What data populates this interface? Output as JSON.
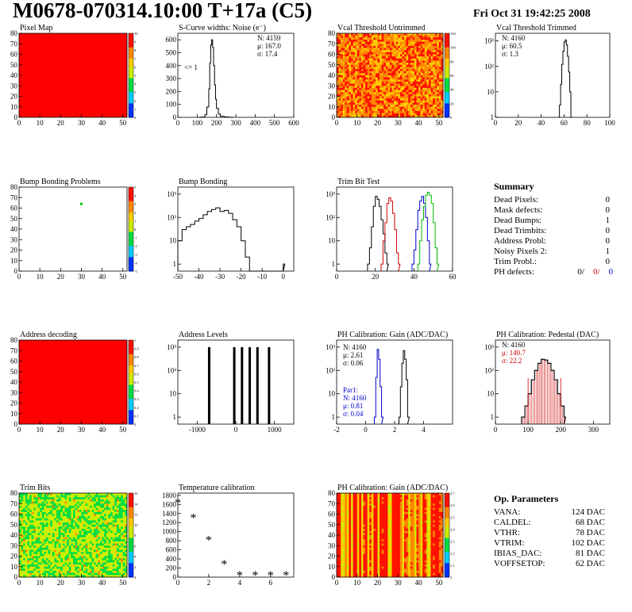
{
  "header": {
    "title": "M0678-070314.10:00 T+17a (C5)",
    "date": "Fri Oct 31 19:42:25 2008"
  },
  "colors": {
    "hist_line": "#000000",
    "red_series": "#cc0000",
    "green_series": "#00bb00",
    "blue_series": "#0000cc",
    "map_red": "#ff0000"
  },
  "chart_data": [
    {
      "id": "pixel-map",
      "type": "heatmap",
      "title": "Pixel Map",
      "xlim": [
        0,
        52
      ],
      "ylim": [
        0,
        80
      ],
      "xticks": [
        "0",
        "10",
        "20",
        "30",
        "40",
        "50"
      ],
      "yticks": [
        "0",
        "10",
        "20",
        "30",
        "40",
        "50",
        "60",
        "70",
        "80"
      ],
      "colorbar_ticks": [
        "10",
        "9",
        "8",
        "7",
        "6",
        "5",
        "4",
        "3",
        "2",
        "1",
        "0"
      ],
      "uniform_value": 10,
      "fill_color": "#ff0000"
    },
    {
      "id": "scurve-noise",
      "type": "line",
      "title": "S-Curve widths: Noise (e⁻)",
      "xlim": [
        0,
        600
      ],
      "ylim": [
        0,
        650
      ],
      "xticks": [
        "0",
        "100",
        "200",
        "300",
        "400",
        "500",
        "600"
      ],
      "yticks": [
        "0",
        "100",
        "200",
        "300",
        "400",
        "500",
        "600"
      ],
      "x": [
        100,
        120,
        140,
        150,
        160,
        165,
        170,
        175,
        180,
        185,
        190,
        195,
        200,
        210,
        220,
        240,
        260,
        280
      ],
      "y": [
        0,
        2,
        20,
        80,
        220,
        420,
        560,
        600,
        540,
        400,
        250,
        140,
        70,
        25,
        8,
        3,
        1,
        0
      ],
      "stats": [
        "N: 4159",
        "μ: 167.0",
        "σ: 17.4"
      ],
      "annotations": [
        "<= 1"
      ]
    },
    {
      "id": "vcal-untrimmed",
      "type": "heatmap",
      "title": "Vcal Threshold Untrimmed",
      "xlim": [
        0,
        52
      ],
      "ylim": [
        0,
        80
      ],
      "xticks": [
        "0",
        "10",
        "20",
        "30",
        "40",
        "50"
      ],
      "yticks": [
        "0",
        "10",
        "20",
        "30",
        "40",
        "50",
        "60",
        "70",
        "80"
      ],
      "colorbar_ticks": [
        "120",
        "100",
        "80",
        "60",
        "40",
        "20",
        "0"
      ]
    },
    {
      "id": "vcal-trimmed",
      "type": "line",
      "title": "Vcal Threshold Trimmed",
      "xlim": [
        0,
        100
      ],
      "ylog": true,
      "ylim": [
        1,
        2000
      ],
      "xticks": [
        "0",
        "20",
        "40",
        "60",
        "80",
        "100"
      ],
      "yticks": [
        "1",
        "10",
        "10²",
        "10³"
      ],
      "x": [
        55,
        56,
        57,
        58,
        59,
        60,
        61,
        62,
        63,
        64,
        65,
        66
      ],
      "y": [
        1,
        3,
        20,
        120,
        400,
        900,
        1100,
        700,
        250,
        60,
        10,
        1
      ],
      "stats": [
        "N: 4160",
        "μ: 60.5",
        "σ: 1.3"
      ]
    },
    {
      "id": "bump-bonding-problems",
      "type": "heatmap",
      "title": "Bump Bonding Problems",
      "xlim": [
        0,
        52
      ],
      "ylim": [
        0,
        80
      ],
      "xticks": [
        "0",
        "10",
        "20",
        "30",
        "40",
        "50"
      ],
      "yticks": [
        "0",
        "10",
        "20",
        "30",
        "40",
        "50",
        "60",
        "70",
        "80"
      ],
      "colorbar_ticks": [
        "5",
        "4",
        "3",
        "2",
        "1",
        "0",
        "-1",
        "-2",
        "-3",
        "-4",
        "-5"
      ],
      "points": [
        {
          "x": 30,
          "y": 64
        }
      ]
    },
    {
      "id": "bump-bonding",
      "type": "line",
      "title": "Bump Bonding",
      "xlim": [
        -50,
        5
      ],
      "ylog": true,
      "ylim": [
        0.5,
        2000
      ],
      "xticks": [
        "-50",
        "-40",
        "-30",
        "-20",
        "-10",
        "0"
      ],
      "yticks": [
        "1",
        "10",
        "10²",
        "10³"
      ],
      "x": [
        -50,
        -48,
        -46,
        -44,
        -42,
        -40,
        -38,
        -36,
        -34,
        -32,
        -30,
        -28,
        -26,
        -24,
        -22,
        -20,
        -18,
        -16,
        -1,
        0
      ],
      "y": [
        10,
        30,
        40,
        50,
        70,
        90,
        130,
        180,
        220,
        260,
        180,
        200,
        150,
        80,
        40,
        10,
        2,
        0.5,
        0.5,
        1
      ]
    },
    {
      "id": "trim-bit-test",
      "type": "line",
      "title": "Trim Bit Test",
      "xlim": [
        0,
        60
      ],
      "ylog": true,
      "ylim": [
        0.5,
        2000
      ],
      "xticks": [
        "0",
        "20",
        "40",
        "60"
      ],
      "yticks": [
        "1",
        "10",
        "10²",
        "10³"
      ],
      "series": [
        {
          "color": "#000000",
          "x": [
            16,
            17,
            18,
            19,
            20,
            21,
            22,
            23,
            24,
            25,
            26
          ],
          "y": [
            1,
            5,
            40,
            300,
            800,
            600,
            300,
            80,
            20,
            3,
            1
          ]
        },
        {
          "color": "#cc0000",
          "x": [
            23,
            24,
            25,
            26,
            27,
            28,
            29,
            30,
            31,
            32
          ],
          "y": [
            1,
            10,
            60,
            400,
            700,
            500,
            150,
            30,
            3,
            1
          ]
        },
        {
          "color": "#0000cc",
          "x": [
            39,
            40,
            41,
            42,
            43,
            44,
            45,
            46,
            47,
            48
          ],
          "y": [
            1,
            4,
            30,
            200,
            500,
            800,
            400,
            100,
            10,
            1
          ]
        },
        {
          "color": "#00bb00",
          "x": [
            42,
            43,
            44,
            45,
            46,
            47,
            48,
            49,
            50,
            51,
            52
          ],
          "y": [
            1,
            10,
            80,
            300,
            900,
            1200,
            900,
            400,
            60,
            5,
            1
          ]
        }
      ]
    },
    {
      "id": "address-decoding",
      "type": "heatmap",
      "title": "Address decoding",
      "xlim": [
        0,
        52
      ],
      "ylim": [
        0,
        80
      ],
      "xticks": [
        "0",
        "10",
        "20",
        "30",
        "40",
        "50"
      ],
      "yticks": [
        "0",
        "10",
        "20",
        "30",
        "40",
        "50",
        "60",
        "70",
        "80"
      ],
      "colorbar_ticks": [
        "1",
        "0.9",
        "0.8",
        "0.7",
        "0.6",
        "0.5",
        "0.4",
        "0.3",
        "0.2",
        "0.1",
        "0"
      ],
      "uniform_value": 1,
      "fill_color": "#ff0000"
    },
    {
      "id": "address-levels",
      "type": "bar",
      "title": "Address Levels",
      "xlim": [
        -1500,
        1500
      ],
      "ylog": true,
      "ylim": [
        0.5,
        2000
      ],
      "xticks": [
        "-1000",
        "0",
        "1000"
      ],
      "yticks": [
        "1",
        "10",
        "10²",
        "10³"
      ],
      "x": [
        -700,
        -50,
        150,
        350,
        550,
        850
      ],
      "y": [
        1000,
        1000,
        1000,
        1000,
        1000,
        1000
      ]
    },
    {
      "id": "ph-gain",
      "type": "line",
      "title": "PH Calibration: Gain (ADC/DAC)",
      "xlim": [
        -2,
        6
      ],
      "ylog": true,
      "ylim": [
        0.5,
        2000
      ],
      "xticks": [
        "-2",
        "0",
        "2",
        "4"
      ],
      "yticks": [
        "1",
        "10",
        "10²",
        "10³"
      ],
      "series": [
        {
          "color": "#000000",
          "x": [
            2.3,
            2.4,
            2.5,
            2.6,
            2.7,
            2.8,
            2.9
          ],
          "y": [
            1,
            20,
            200,
            700,
            300,
            40,
            1
          ]
        },
        {
          "color": "#0000cc",
          "x": [
            0.6,
            0.7,
            0.8,
            0.9,
            1.0,
            1.1
          ],
          "y": [
            1,
            50,
            800,
            300,
            20,
            1
          ]
        }
      ],
      "stats": [
        "N: 4160",
        "μ: 2.61",
        "σ: 0.06"
      ],
      "stats2": [
        "Par1:",
        "N: 4160",
        "μ: 0.81",
        "σ: 0.04"
      ]
    },
    {
      "id": "ph-pedestal",
      "type": "line",
      "title": "PH Calibration: Pedestal (DAC)",
      "xlim": [
        0,
        350
      ],
      "ylog": true,
      "ylim": [
        0.5,
        2000
      ],
      "xticks": [
        "0",
        "100",
        "200",
        "300"
      ],
      "yticks": [
        "1",
        "10",
        "10²",
        "10³"
      ],
      "x": [
        80,
        90,
        100,
        110,
        120,
        130,
        140,
        150,
        160,
        170,
        180,
        190,
        200,
        210
      ],
      "y": [
        1,
        3,
        10,
        40,
        100,
        200,
        300,
        280,
        200,
        100,
        40,
        10,
        3,
        1
      ],
      "stats": [
        "N: 4160",
        "μ: 140.7",
        "σ: 22.2"
      ]
    },
    {
      "id": "trim-bits",
      "type": "heatmap",
      "title": "Trim Bits",
      "xlim": [
        0,
        52
      ],
      "ylim": [
        0,
        80
      ],
      "xticks": [
        "0",
        "10",
        "20",
        "30",
        "40",
        "50"
      ],
      "yticks": [
        "0",
        "10",
        "20",
        "30",
        "40",
        "50",
        "60",
        "70",
        "80"
      ],
      "colorbar_ticks": [
        "16",
        "14",
        "12",
        "10",
        "8",
        "6",
        "4",
        "2",
        "0"
      ]
    },
    {
      "id": "temperature-calibration",
      "type": "scatter",
      "title": "Temperature calibration",
      "xlim": [
        0,
        7.5
      ],
      "ylim": [
        0,
        1850
      ],
      "xticks": [
        "0",
        "2",
        "4",
        "6"
      ],
      "yticks": [
        "0",
        "200",
        "400",
        "600",
        "800",
        "1000",
        "1200",
        "1400",
        "1600",
        "1800"
      ],
      "x": [
        0,
        1,
        2,
        3,
        4,
        5,
        6,
        7
      ],
      "y": [
        1650,
        1320,
        830,
        300,
        50,
        50,
        50,
        50
      ]
    },
    {
      "id": "ph-gain-map",
      "type": "heatmap",
      "title": "PH Calibration: Gain (ADC/DAC)",
      "xlim": [
        0,
        52
      ],
      "ylim": [
        0,
        80
      ],
      "xticks": [
        "0",
        "10",
        "20",
        "30",
        "40",
        "50"
      ],
      "yticks": [
        "0",
        "10",
        "20",
        "30",
        "40",
        "50",
        "60",
        "70",
        "80"
      ],
      "colorbar_ticks": [
        "2.7",
        "2.6",
        "2.5",
        "2.4",
        "2.3",
        "2.2",
        "2.1",
        "2"
      ]
    }
  ],
  "summary": {
    "title": "Summary",
    "rows": [
      {
        "label": "Dead Pixels:",
        "value": "0"
      },
      {
        "label": "Mask defects:",
        "value": "0"
      },
      {
        "label": "Dead Bumps:",
        "value": "1"
      },
      {
        "label": "Dead Trimbits:",
        "value": "0"
      },
      {
        "label": "Address Probl:",
        "value": "0"
      },
      {
        "label": "Noisy Pixels 2:",
        "value": "1"
      },
      {
        "label": "Trim Probl.:",
        "value": "0"
      }
    ],
    "ph_label": "PH defects:",
    "ph_values": [
      "0/",
      "0/",
      "0"
    ]
  },
  "op_params": {
    "title": "Op. Parameters",
    "rows": [
      {
        "label": "VANA:",
        "value": "124 DAC"
      },
      {
        "label": "CALDEL:",
        "value": "68 DAC"
      },
      {
        "label": "VTHR:",
        "value": "78 DAC"
      },
      {
        "label": "VTRIM:",
        "value": "102 DAC"
      },
      {
        "label": "IBIAS_DAC:",
        "value": "81 DAC"
      },
      {
        "label": "VOFFSETOP:",
        "value": "62 DAC"
      }
    ]
  }
}
